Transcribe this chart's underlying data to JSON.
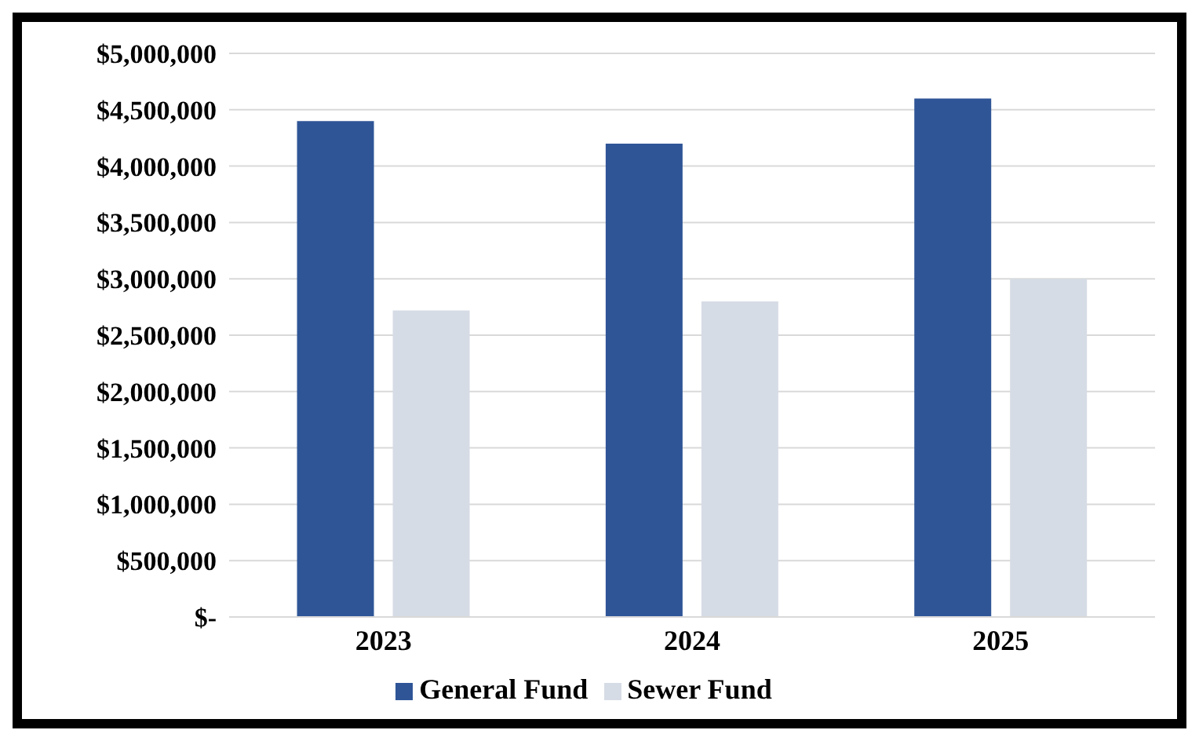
{
  "chart_data": {
    "type": "bar",
    "categories": [
      "2023",
      "2024",
      "2025"
    ],
    "series": [
      {
        "name": "General Fund",
        "color": "#2f5597",
        "values": [
          4400000,
          4200000,
          4600000
        ]
      },
      {
        "name": "Sewer Fund",
        "color": "#d6dce5",
        "values": [
          2720000,
          2800000,
          3000000
        ]
      }
    ],
    "ylim": [
      0,
      5000000
    ],
    "yticks": [
      {
        "value": 0,
        "label": "$-"
      },
      {
        "value": 500000,
        "label": "$500,000"
      },
      {
        "value": 1000000,
        "label": "$1,000,000"
      },
      {
        "value": 1500000,
        "label": "$1,500,000"
      },
      {
        "value": 2000000,
        "label": "$2,000,000"
      },
      {
        "value": 2500000,
        "label": "$2,500,000"
      },
      {
        "value": 3000000,
        "label": "$3,000,000"
      },
      {
        "value": 3500000,
        "label": "$3,500,000"
      },
      {
        "value": 4000000,
        "label": "$4,000,000"
      },
      {
        "value": 4500000,
        "label": "$4,500,000"
      },
      {
        "value": 5000000,
        "label": "$5,000,000"
      }
    ],
    "grid": "y",
    "legend": "bottom"
  }
}
